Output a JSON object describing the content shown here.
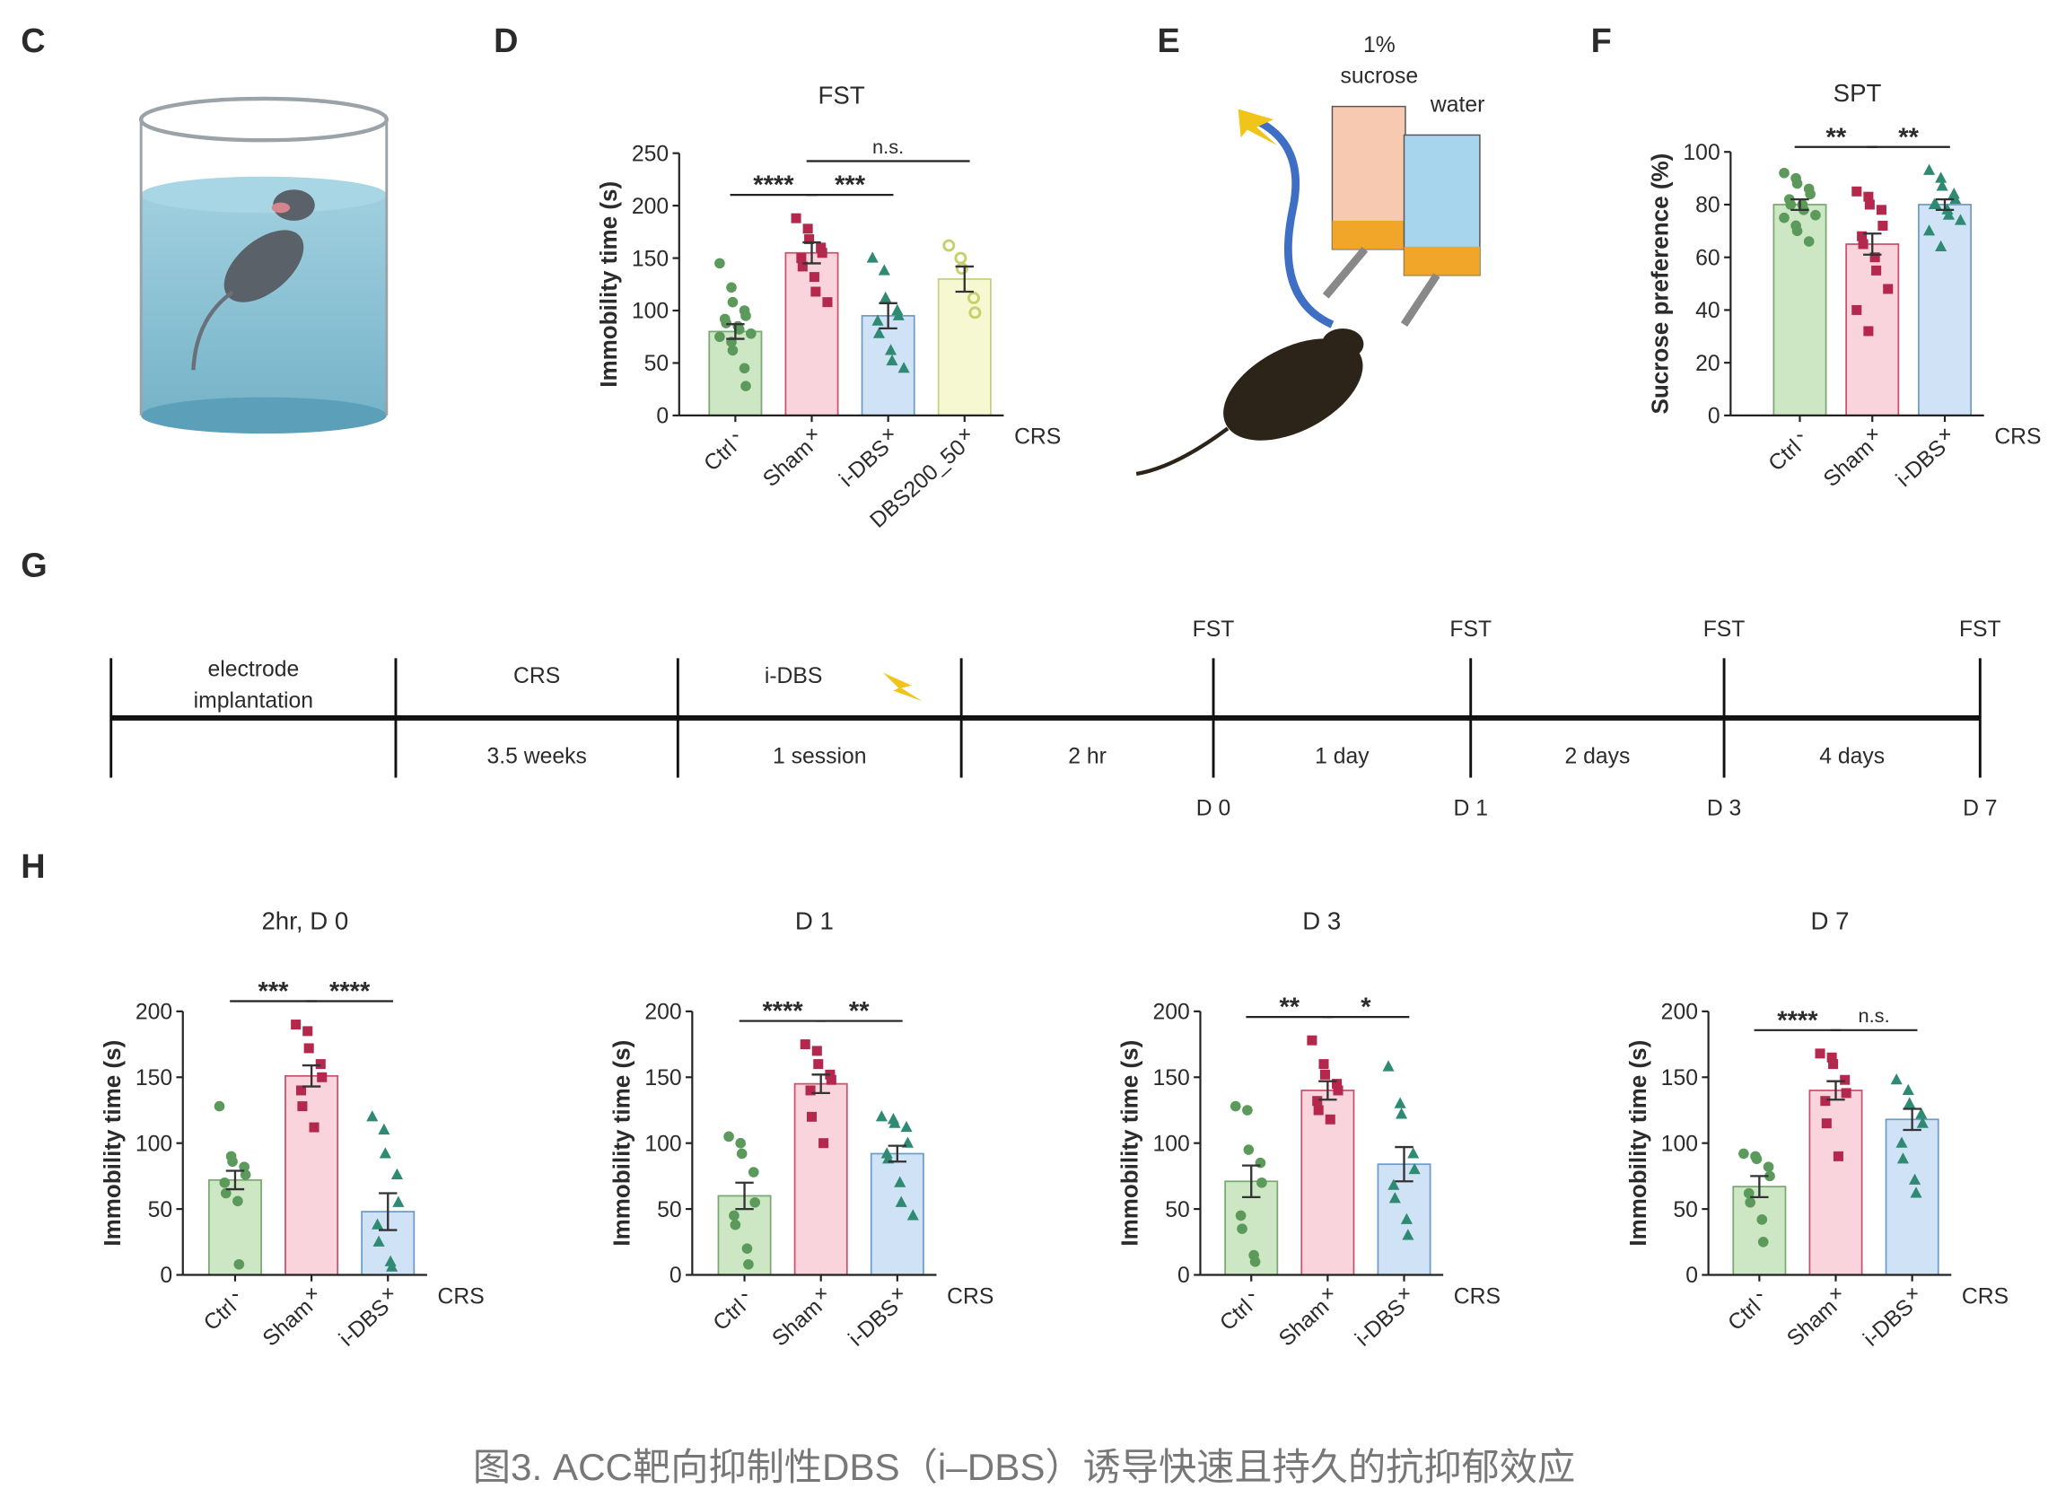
{
  "panel_labels": [
    "C",
    "D",
    "E",
    "F",
    "G",
    "H"
  ],
  "illustration_e": {
    "sucrose_label": [
      "1%",
      "sucrose"
    ],
    "water_label": "water"
  },
  "timeline": {
    "stages_above": [
      [
        "electrode",
        "implantation"
      ],
      [
        "CRS"
      ],
      [
        "i-DBS"
      ]
    ],
    "intervals_below": [
      "3.5 weeks",
      "1 session",
      "2 hr",
      "1 day",
      "2 days",
      "4 days"
    ],
    "tests": [
      "FST",
      "FST",
      "FST",
      "FST"
    ],
    "days": [
      "D 0",
      "D 1",
      "D 3",
      "D 7"
    ]
  },
  "chart_data": [
    {
      "type": "bar",
      "title": "FST",
      "ylabel": "Immobility time (s)",
      "factor_label": "CRS",
      "categories": [
        "Ctrl",
        "Sham",
        "i-DBS",
        "DBS200_50"
      ],
      "factor_signs": [
        "-",
        "+",
        "+",
        "+"
      ],
      "values": [
        80,
        155,
        95,
        130
      ],
      "errors": [
        7,
        10,
        12,
        12
      ],
      "bar_colors": [
        "#cde7c4",
        "#fad4dc",
        "#cfe2f6",
        "#f6f8d2"
      ],
      "edge_colors": [
        "#7aa872",
        "#c9516b",
        "#6f9cc7",
        "#c9cf80"
      ],
      "point_colors": [
        "#5b9a5b",
        "#b3284c",
        "#2f8a73",
        "#c8cf6b"
      ],
      "markers": [
        "circle",
        "square",
        "triangle",
        "open-circle"
      ],
      "points": [
        [
          145,
          122,
          108,
          100,
          95,
          92,
          88,
          85,
          82,
          78,
          75,
          70,
          62,
          45,
          28
        ],
        [
          188,
          178,
          168,
          160,
          155,
          150,
          142,
          132,
          118,
          108
        ],
        [
          150,
          138,
          112,
          100,
          95,
          90,
          78,
          62,
          52,
          45
        ],
        [
          162,
          150,
          140,
          112,
          98
        ]
      ],
      "significance": [
        {
          "pair": [
            "Ctrl",
            "Sham"
          ],
          "label": "****"
        },
        {
          "pair": [
            "Sham",
            "i-DBS"
          ],
          "label": "***"
        },
        {
          "pair": [
            "Sham",
            "DBS200_50"
          ],
          "label": "n.s."
        }
      ],
      "ylim": [
        0,
        250
      ],
      "yticks": [
        0,
        50,
        100,
        150,
        200,
        250
      ]
    },
    {
      "type": "bar",
      "title": "SPT",
      "ylabel": "Sucrose preference (%)",
      "factor_label": "CRS",
      "categories": [
        "Ctrl",
        "Sham",
        "i-DBS"
      ],
      "factor_signs": [
        "-",
        "+",
        "+"
      ],
      "values": [
        80,
        65,
        80
      ],
      "errors": [
        2,
        4,
        2
      ],
      "bar_colors": [
        "#cde7c4",
        "#fad4dc",
        "#cfe2f6"
      ],
      "edge_colors": [
        "#7aa872",
        "#c9516b",
        "#6f9cc7"
      ],
      "point_colors": [
        "#5b9a5b",
        "#b3284c",
        "#2f8a73"
      ],
      "markers": [
        "circle",
        "square",
        "triangle"
      ],
      "points": [
        [
          92,
          90,
          88,
          86,
          84,
          82,
          80,
          80,
          78,
          76,
          75,
          72,
          70,
          66
        ],
        [
          85,
          83,
          80,
          78,
          72,
          68,
          65,
          60,
          55,
          48,
          40,
          32
        ],
        [
          93,
          90,
          87,
          84,
          82,
          80,
          80,
          78,
          76,
          74,
          70,
          64
        ]
      ],
      "significance": [
        {
          "pair": [
            "Ctrl",
            "Sham"
          ],
          "label": "**"
        },
        {
          "pair": [
            "Sham",
            "i-DBS"
          ],
          "label": "**"
        }
      ],
      "ylim": [
        0,
        100
      ],
      "yticks": [
        0,
        20,
        40,
        60,
        80,
        100
      ]
    },
    {
      "type": "bar",
      "title": "2hr, D 0",
      "ylabel": "Immobility time (s)",
      "factor_label": "CRS",
      "categories": [
        "Ctrl",
        "Sham",
        "i-DBS"
      ],
      "factor_signs": [
        "-",
        "+",
        "+"
      ],
      "values": [
        72,
        151,
        48
      ],
      "errors": [
        7,
        8,
        14
      ],
      "bar_colors": [
        "#cde7c4",
        "#fad4dc",
        "#cfe2f6"
      ],
      "edge_colors": [
        "#7aa872",
        "#c9516b",
        "#6f9cc7"
      ],
      "point_colors": [
        "#5b9a5b",
        "#b3284c",
        "#2f8a73"
      ],
      "markers": [
        "circle",
        "square",
        "triangle"
      ],
      "points": [
        [
          128,
          90,
          86,
          82,
          76,
          70,
          62,
          56,
          8
        ],
        [
          190,
          185,
          172,
          160,
          150,
          140,
          128,
          112
        ],
        [
          120,
          110,
          92,
          76,
          55,
          38,
          25,
          10,
          6
        ]
      ],
      "significance": [
        {
          "pair": [
            "Ctrl",
            "Sham"
          ],
          "label": "***"
        },
        {
          "pair": [
            "Sham",
            "i-DBS"
          ],
          "label": "****"
        }
      ],
      "ylim": [
        0,
        200
      ],
      "yticks": [
        0,
        50,
        100,
        150,
        200
      ]
    },
    {
      "type": "bar",
      "title": "D 1",
      "ylabel": "Immobility time (s)",
      "factor_label": "CRS",
      "categories": [
        "Ctrl",
        "Sham",
        "i-DBS"
      ],
      "factor_signs": [
        "-",
        "+",
        "+"
      ],
      "values": [
        60,
        145,
        92
      ],
      "errors": [
        10,
        7,
        6
      ],
      "bar_colors": [
        "#cde7c4",
        "#fad4dc",
        "#cfe2f6"
      ],
      "edge_colors": [
        "#7aa872",
        "#c9516b",
        "#6f9cc7"
      ],
      "point_colors": [
        "#5b9a5b",
        "#b3284c",
        "#2f8a73"
      ],
      "markers": [
        "circle",
        "square",
        "triangle"
      ],
      "points": [
        [
          105,
          100,
          92,
          78,
          55,
          45,
          38,
          20,
          8
        ],
        [
          175,
          170,
          160,
          152,
          148,
          140,
          120,
          100
        ],
        [
          120,
          118,
          115,
          112,
          100,
          92,
          88,
          70,
          55,
          45
        ]
      ],
      "significance": [
        {
          "pair": [
            "Ctrl",
            "Sham"
          ],
          "label": "****"
        },
        {
          "pair": [
            "Sham",
            "i-DBS"
          ],
          "label": "**"
        }
      ],
      "ylim": [
        0,
        200
      ],
      "yticks": [
        0,
        50,
        100,
        150,
        200
      ]
    },
    {
      "type": "bar",
      "title": "D 3",
      "ylabel": "Immobility time (s)",
      "factor_label": "CRS",
      "categories": [
        "Ctrl",
        "Sham",
        "i-DBS"
      ],
      "factor_signs": [
        "-",
        "+",
        "+"
      ],
      "values": [
        71,
        140,
        84
      ],
      "errors": [
        12,
        7,
        13
      ],
      "bar_colors": [
        "#cde7c4",
        "#fad4dc",
        "#cfe2f6"
      ],
      "edge_colors": [
        "#7aa872",
        "#c9516b",
        "#6f9cc7"
      ],
      "point_colors": [
        "#5b9a5b",
        "#b3284c",
        "#2f8a73"
      ],
      "markers": [
        "circle",
        "square",
        "triangle"
      ],
      "points": [
        [
          128,
          125,
          95,
          85,
          70,
          45,
          35,
          15,
          10
        ],
        [
          178,
          160,
          152,
          145,
          140,
          132,
          125,
          118
        ],
        [
          158,
          130,
          122,
          92,
          80,
          68,
          58,
          42,
          30
        ]
      ],
      "significance": [
        {
          "pair": [
            "Ctrl",
            "Sham"
          ],
          "label": "**"
        },
        {
          "pair": [
            "Sham",
            "i-DBS"
          ],
          "label": "*"
        }
      ],
      "ylim": [
        0,
        200
      ],
      "yticks": [
        0,
        50,
        100,
        150,
        200
      ]
    },
    {
      "type": "bar",
      "title": "D 7",
      "ylabel": "Immobility time (s)",
      "factor_label": "CRS",
      "categories": [
        "Ctrl",
        "Sham",
        "i-DBS"
      ],
      "factor_signs": [
        "-",
        "+",
        "+"
      ],
      "values": [
        67,
        140,
        118
      ],
      "errors": [
        8,
        7,
        8
      ],
      "bar_colors": [
        "#cde7c4",
        "#fad4dc",
        "#cfe2f6"
      ],
      "edge_colors": [
        "#7aa872",
        "#c9516b",
        "#6f9cc7"
      ],
      "point_colors": [
        "#5b9a5b",
        "#b3284c",
        "#2f8a73"
      ],
      "markers": [
        "circle",
        "square",
        "triangle"
      ],
      "points": [
        [
          92,
          90,
          88,
          82,
          75,
          62,
          55,
          42,
          25
        ],
        [
          168,
          165,
          160,
          148,
          138,
          132,
          115,
          90
        ],
        [
          148,
          140,
          130,
          122,
          115,
          100,
          88,
          72,
          62
        ]
      ],
      "significance": [
        {
          "pair": [
            "Ctrl",
            "Sham"
          ],
          "label": "****"
        },
        {
          "pair": [
            "Sham",
            "i-DBS"
          ],
          "label": "n.s."
        }
      ],
      "ylim": [
        0,
        200
      ],
      "yticks": [
        0,
        50,
        100,
        150,
        200
      ]
    }
  ],
  "caption": "图3. ACC靶向抑制性DBS（i–DBS）诱导快速且持久的抗抑郁效应"
}
